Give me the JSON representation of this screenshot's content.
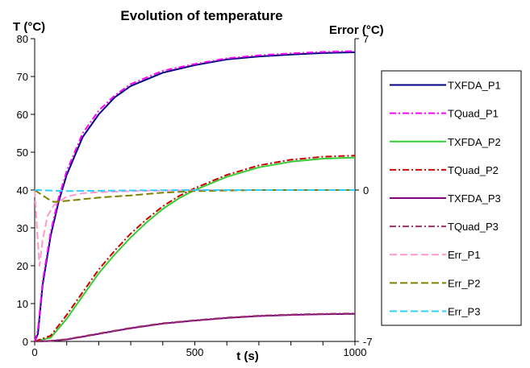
{
  "chart_data": {
    "type": "line",
    "title": "Evolution of temperature",
    "xlabel": "t (s)",
    "ylabel": "T (°C)",
    "y2label": "Error (°C)",
    "xlim": [
      0,
      1000
    ],
    "ylim": [
      0,
      80
    ],
    "y2lim": [
      -7,
      7
    ],
    "xticks": [
      0,
      500,
      1000
    ],
    "xtick_labels": [
      "0",
      "500",
      "1000"
    ],
    "yticks": [
      0,
      10,
      20,
      30,
      40,
      50,
      60,
      70,
      80
    ],
    "ytick_labels": [
      "0",
      "10",
      "20",
      "30",
      "40",
      "50",
      "60",
      "70",
      "80"
    ],
    "y2ticks": [
      -7,
      0,
      7
    ],
    "y2tick_labels": [
      "-7",
      "0",
      "7"
    ],
    "grid": false,
    "legend_position": "right",
    "series": [
      {
        "name": "TXFDA_P1",
        "axis": "left",
        "color": "#000080",
        "style": "solid",
        "x": [
          0,
          10,
          25,
          50,
          75,
          100,
          150,
          200,
          250,
          300,
          400,
          500,
          600,
          700,
          800,
          900,
          1000
        ],
        "y": [
          0,
          2,
          15,
          28,
          37,
          44,
          54,
          60,
          64.5,
          67.5,
          71,
          73,
          74.5,
          75.3,
          75.8,
          76.2,
          76.4
        ]
      },
      {
        "name": "TQuad_P1",
        "axis": "left",
        "color": "#FF00FF",
        "style": "dashdot",
        "x": [
          0,
          10,
          25,
          50,
          75,
          100,
          150,
          200,
          250,
          300,
          400,
          500,
          600,
          700,
          800,
          900,
          1000
        ],
        "y": [
          0,
          3,
          16,
          29,
          38,
          45,
          55,
          61,
          65,
          68,
          71.5,
          73.3,
          74.8,
          75.6,
          76.1,
          76.5,
          76.7
        ]
      },
      {
        "name": "TXFDA_P2",
        "axis": "left",
        "color": "#33CC33",
        "style": "solid",
        "x": [
          0,
          50,
          100,
          150,
          200,
          250,
          300,
          350,
          400,
          450,
          500,
          600,
          700,
          800,
          900,
          1000
        ],
        "y": [
          0,
          1,
          6,
          12,
          18,
          23,
          27.5,
          31.5,
          35,
          37.8,
          40,
          43.5,
          46,
          47.5,
          48.3,
          48.6
        ]
      },
      {
        "name": "TQuad_P2",
        "axis": "left",
        "color": "#CC0000",
        "style": "dashdot",
        "x": [
          0,
          50,
          100,
          150,
          200,
          250,
          300,
          350,
          400,
          450,
          500,
          600,
          700,
          800,
          900,
          1000
        ],
        "y": [
          0,
          1.5,
          7,
          13,
          19,
          24,
          28.5,
          32.3,
          35.7,
          38.4,
          40.5,
          44,
          46.5,
          48,
          48.8,
          49.1
        ]
      },
      {
        "name": "TXFDA_P3",
        "axis": "left",
        "color": "#800080",
        "style": "solid",
        "x": [
          0,
          50,
          100,
          200,
          300,
          400,
          500,
          600,
          700,
          800,
          900,
          1000
        ],
        "y": [
          0,
          0.1,
          0.5,
          2,
          3.5,
          4.7,
          5.5,
          6.2,
          6.7,
          7,
          7.2,
          7.3
        ]
      },
      {
        "name": "TQuad_P3",
        "axis": "left",
        "color": "#993366",
        "style": "dashdot",
        "x": [
          0,
          50,
          100,
          200,
          300,
          400,
          500,
          600,
          700,
          800,
          900,
          1000
        ],
        "y": [
          0,
          0.2,
          0.6,
          2.1,
          3.6,
          4.8,
          5.6,
          6.3,
          6.8,
          7.1,
          7.3,
          7.4
        ]
      },
      {
        "name": "Err_P1",
        "axis": "right",
        "color": "#FF99CC",
        "style": "dashed",
        "x": [
          0,
          8,
          15,
          25,
          40,
          60,
          100,
          150,
          200,
          300,
          500,
          700,
          1000
        ],
        "y": [
          0,
          -2,
          -3.5,
          -2.3,
          -1.2,
          -0.7,
          -0.3,
          -0.15,
          -0.1,
          -0.05,
          0,
          0,
          0
        ]
      },
      {
        "name": "Err_P2",
        "axis": "right",
        "color": "#808000",
        "style": "dashed",
        "x": [
          0,
          40,
          60,
          100,
          200,
          300,
          400,
          500,
          700,
          1000
        ],
        "y": [
          0,
          -0.4,
          -0.55,
          -0.5,
          -0.35,
          -0.25,
          -0.12,
          -0.05,
          0,
          0
        ]
      },
      {
        "name": "Err_P3",
        "axis": "right",
        "color": "#33CCFF",
        "style": "dashed",
        "x": [
          0,
          100,
          300,
          500,
          700,
          1000
        ],
        "y": [
          0,
          -0.05,
          -0.02,
          0,
          0,
          0
        ]
      }
    ]
  }
}
